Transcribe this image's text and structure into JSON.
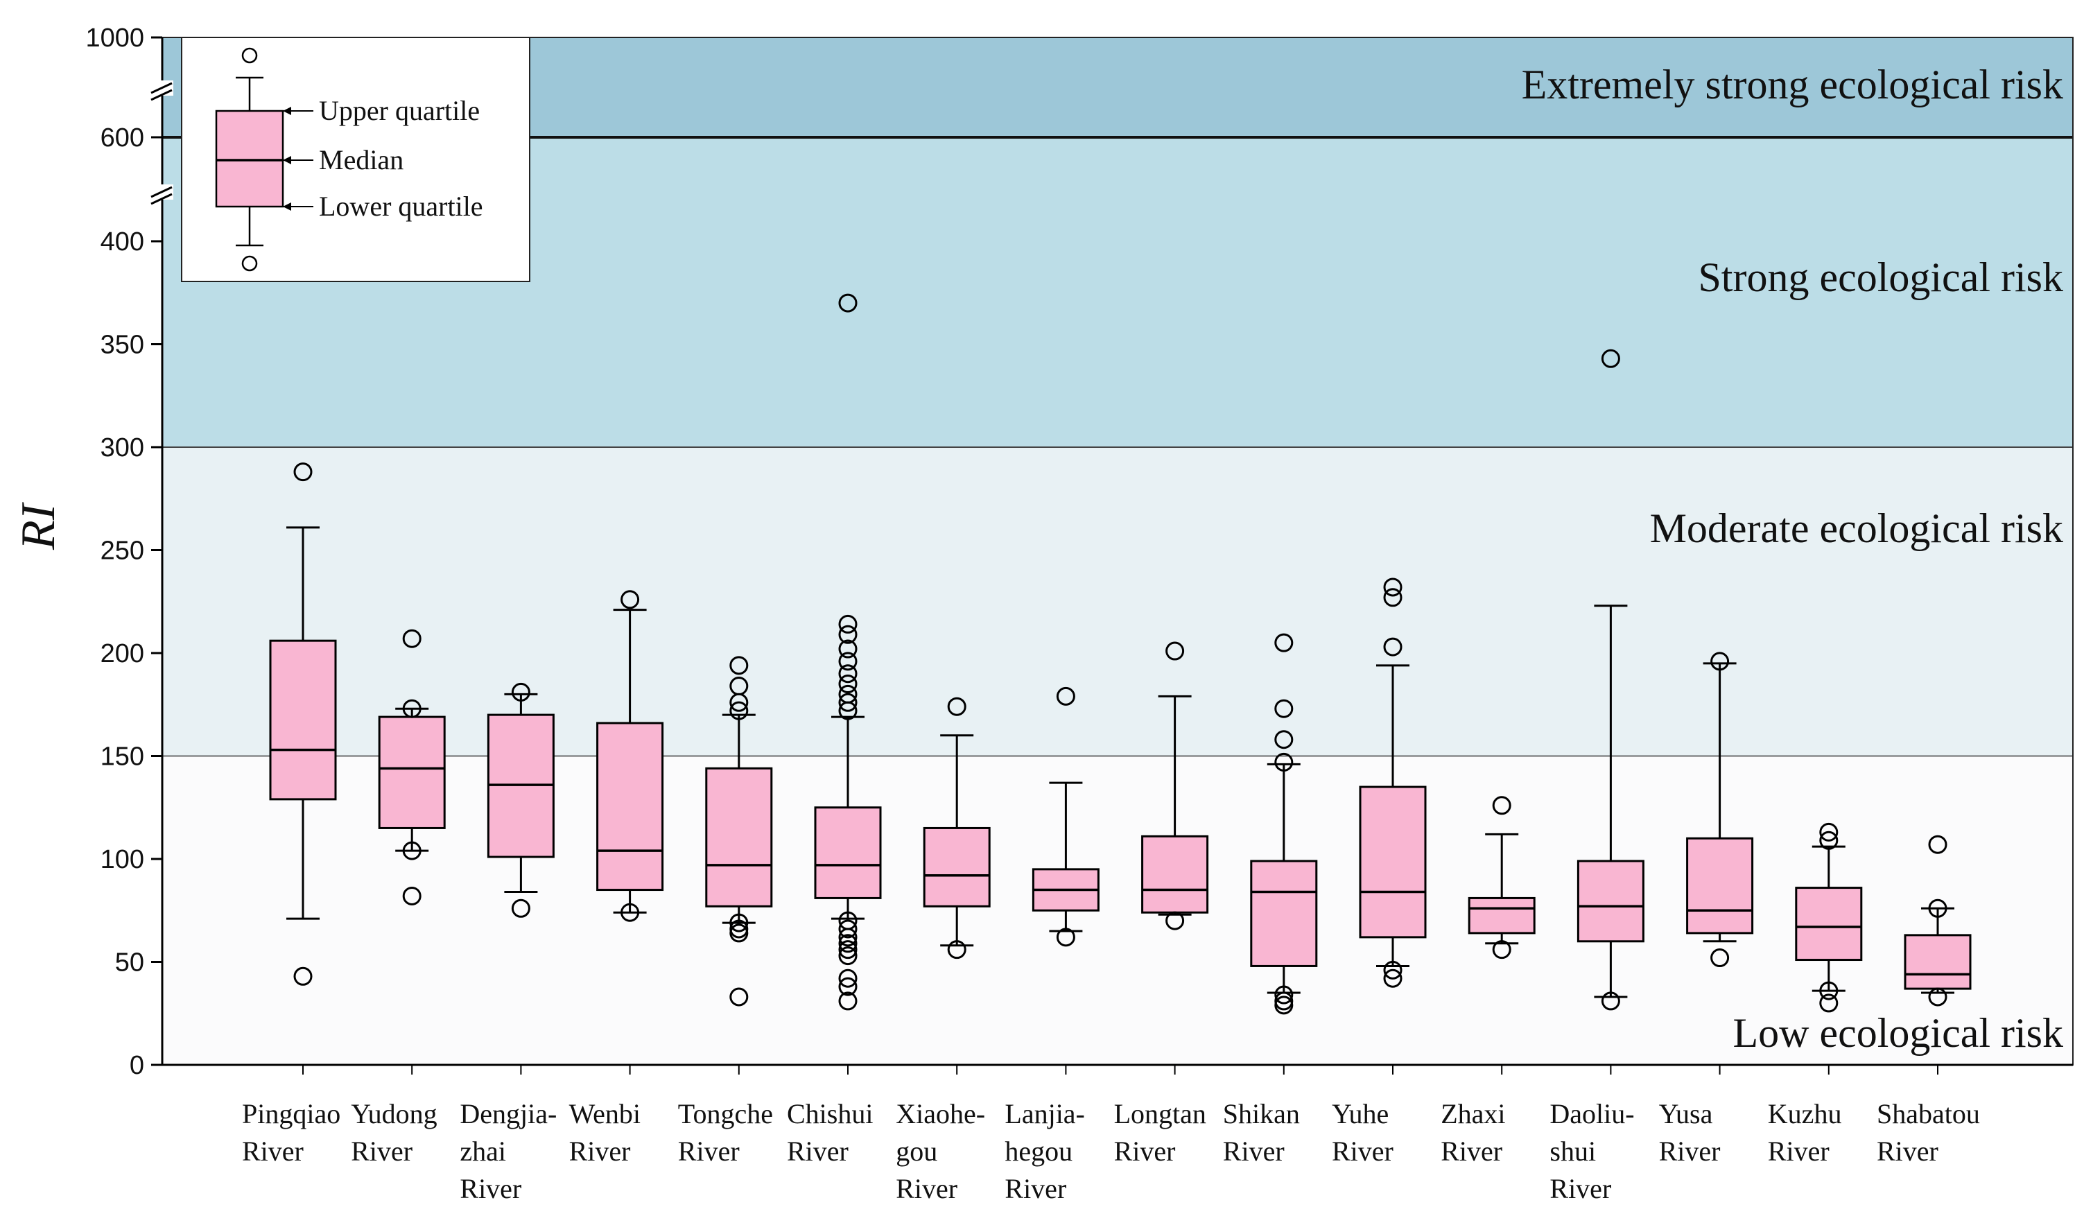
{
  "chart_data": {
    "type": "box",
    "ylabel": "RI",
    "yticks": [
      "0",
      "50",
      "100",
      "150",
      "200",
      "250",
      "300",
      "350",
      "400",
      "600",
      "1000"
    ],
    "axis_breaks": [
      "400-600",
      "600-1000"
    ],
    "zones": [
      {
        "label": "Low ecological risk",
        "from": 0,
        "to": 150,
        "color": "#fbfbfc"
      },
      {
        "label": "Moderate  ecological risk",
        "from": 150,
        "to": 300,
        "color": "#e8f1f4"
      },
      {
        "label": "Strong  ecological risk",
        "from": 300,
        "to": 600,
        "color": "#bcdde7"
      },
      {
        "label": "Extremely strong ecological risk",
        "from": 600,
        "to": 1000,
        "color": "#9dc7d8"
      }
    ],
    "legend": {
      "upper": "Upper  quartile",
      "median": "Median",
      "lower": "Lower  quartile"
    },
    "box_color": "#f9b6d2",
    "categories": [
      {
        "lines": [
          "Pingqiao",
          "River"
        ],
        "min": 71,
        "q1": 129,
        "median": 153,
        "q3": 206,
        "max": 261,
        "outliers": [
          43,
          288
        ]
      },
      {
        "lines": [
          "Yudong",
          "River"
        ],
        "min": 104,
        "q1": 115,
        "median": 144,
        "q3": 169,
        "max": 173,
        "outliers": [
          82,
          104,
          173,
          207
        ]
      },
      {
        "lines": [
          "Dengjia-",
          "zhai",
          "River"
        ],
        "min": 84,
        "q1": 101,
        "median": 136,
        "q3": 170,
        "max": 180,
        "outliers": [
          76,
          181
        ]
      },
      {
        "lines": [
          "Wenbi",
          "River"
        ],
        "min": 74,
        "q1": 85,
        "median": 104,
        "q3": 166,
        "max": 221,
        "outliers": [
          74,
          226
        ]
      },
      {
        "lines": [
          "Tongche",
          "River"
        ],
        "min": 69,
        "q1": 77,
        "median": 97,
        "q3": 144,
        "max": 170,
        "outliers": [
          33,
          64,
          66,
          69,
          172,
          176,
          184,
          194
        ]
      },
      {
        "lines": [
          "Chishui",
          "River"
        ],
        "min": 71,
        "q1": 81,
        "median": 97,
        "q3": 125,
        "max": 169,
        "outliers": [
          31,
          38,
          42,
          53,
          56,
          59,
          62,
          66,
          70,
          172,
          176,
          180,
          185,
          190,
          196,
          202,
          209,
          214,
          370
        ]
      },
      {
        "lines": [
          "Xiaohe-",
          "gou",
          "River"
        ],
        "min": 58,
        "q1": 77,
        "median": 92,
        "q3": 115,
        "max": 160,
        "outliers": [
          56,
          174
        ]
      },
      {
        "lines": [
          "Lanjia-",
          "hegou",
          "River"
        ],
        "min": 65,
        "q1": 75,
        "median": 85,
        "q3": 95,
        "max": 137,
        "outliers": [
          62,
          179
        ]
      },
      {
        "lines": [
          "Longtan",
          "River"
        ],
        "min": 73,
        "q1": 74,
        "median": 85,
        "q3": 111,
        "max": 179,
        "outliers": [
          70,
          201
        ]
      },
      {
        "lines": [
          "Shikan",
          "River"
        ],
        "min": 35,
        "q1": 48,
        "median": 84,
        "q3": 99,
        "max": 146,
        "outliers": [
          29,
          31,
          34,
          147,
          158,
          173,
          205
        ]
      },
      {
        "lines": [
          "Yuhe",
          "River"
        ],
        "min": 48,
        "q1": 62,
        "median": 84,
        "q3": 135,
        "max": 194,
        "outliers": [
          42,
          46,
          203,
          227,
          232
        ]
      },
      {
        "lines": [
          "Zhaxi",
          "River"
        ],
        "min": 59,
        "q1": 64,
        "median": 76,
        "q3": 81,
        "max": 112,
        "outliers": [
          56,
          126
        ]
      },
      {
        "lines": [
          "Daoliu-",
          "shui",
          "River"
        ],
        "min": 33,
        "q1": 60,
        "median": 77,
        "q3": 99,
        "max": 223,
        "outliers": [
          31,
          343
        ]
      },
      {
        "lines": [
          "Yusa",
          "River"
        ],
        "min": 60,
        "q1": 64,
        "median": 75,
        "q3": 110,
        "max": 195,
        "outliers": [
          52,
          196
        ]
      },
      {
        "lines": [
          "Kuzhu",
          "River"
        ],
        "min": 36,
        "q1": 51,
        "median": 67,
        "q3": 86,
        "max": 106,
        "outliers": [
          30,
          36,
          109,
          113
        ]
      },
      {
        "lines": [
          "Shabatou",
          "River"
        ],
        "min": 35,
        "q1": 37,
        "median": 44,
        "q3": 63,
        "max": 76,
        "outliers": [
          33,
          76,
          107
        ]
      }
    ]
  }
}
